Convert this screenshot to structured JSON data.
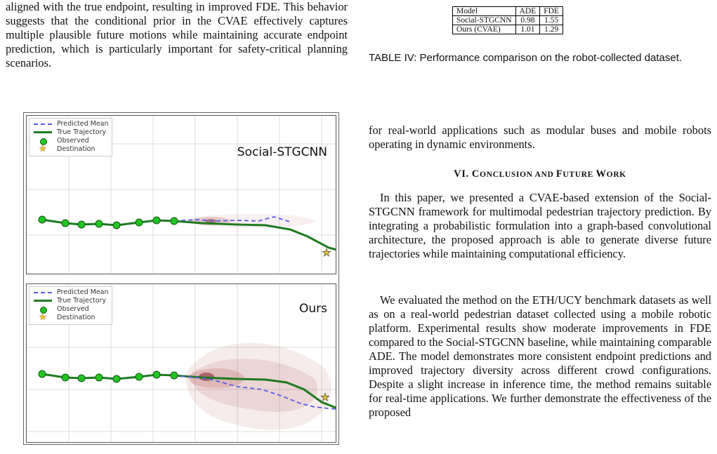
{
  "left": {
    "intro_text": "aligned with the true endpoint, resulting in improved FDE. This behavior suggests that the conditional prior in the CVAE effectively captures multiple plausible future motions while maintaining accurate endpoint prediction, which is particularly important for safety-critical planning scenarios."
  },
  "figure": {
    "legend": {
      "predicted_mean": "Predicted Mean",
      "true_trajectory": "True Trajectory",
      "observed": "Observed",
      "destination": "Destination"
    },
    "top_title": "Social-STGCNN",
    "bottom_title": "Ours",
    "colors": {
      "predicted": "#5a5ae8",
      "true": "#1f7a1f",
      "observed_fill": "#22c522",
      "destination": "#e6c229",
      "uncertainty": "#a83a3a"
    }
  },
  "table": {
    "headers": [
      "Model",
      "ADE",
      "FDE"
    ],
    "rows": [
      {
        "model": "Social-STGCNN",
        "ade": "0.98",
        "fde": "1.55"
      },
      {
        "model": "Ours (CVAE)",
        "ade": "1.01",
        "fde": "1.29"
      }
    ]
  },
  "right": {
    "caption": "TABLE IV: Performance comparison on the robot-collected dataset.",
    "para1": "for real-world applications such as modular buses and mobile robots operating in dynamic environments.",
    "section_number": "VI. C",
    "section_small1": "ONCLUSION AND ",
    "section_f": "F",
    "section_small2": "UTURE ",
    "section_w": "W",
    "section_small3": "ORK",
    "para2": "In this paper, we presented a CVAE-based extension of the Social-STGCNN framework for multimodal pedestrian trajectory prediction. By integrating a probabilistic formulation into a graph-based convolutional architecture, the proposed approach is able to generate diverse future trajectories while maintaining computational efficiency.",
    "para3": "We evaluated the method on the ETH/UCY benchmark datasets as well as on a real-world pedestrian dataset collected using a mobile robotic platform. Experimental results show moderate improvements in FDE compared to the Social-STGCNN baseline, while maintaining comparable ADE. The model demonstrates more consistent endpoint predictions and improved trajectory diversity across different crowd configurations. Despite a slight increase in inference time, the method remains suitable for real-time applications. We further demonstrate the effectiveness of the proposed"
  }
}
